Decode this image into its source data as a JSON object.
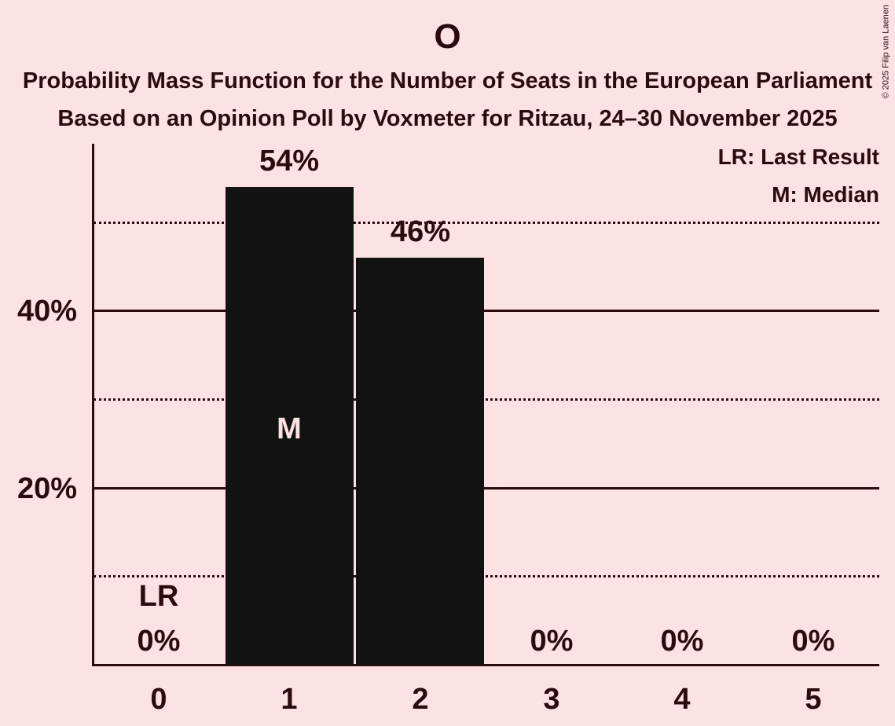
{
  "page": {
    "copyright": "© 2025 Filip van Laenen"
  },
  "chart_data": {
    "type": "bar",
    "title": "O",
    "subtitle": "Probability Mass Function for the Number of Seats in the European Parliament",
    "poll_line": "Based on an Opinion Poll by Voxmeter for Ritzau, 24–30 November 2025",
    "xlabel": "",
    "ylabel": "",
    "categories": [
      "0",
      "1",
      "2",
      "3",
      "4",
      "5"
    ],
    "values": [
      0,
      54,
      46,
      0,
      0,
      0
    ],
    "bar_value_labels": [
      "0%",
      "54%",
      "46%",
      "0%",
      "0%",
      "0%"
    ],
    "y_axis": {
      "tick_labels": [
        "20%",
        "40%"
      ],
      "tick_values": [
        20,
        40
      ],
      "solid_gridlines": [
        20,
        40
      ],
      "dotted_gridlines": [
        10,
        30,
        50
      ],
      "ylim": [
        0,
        59
      ]
    },
    "legend": {
      "position": "top-right",
      "lr_entry": "LR: Last Result",
      "m_entry": "M: Median"
    },
    "annotations": {
      "lr_label": "LR",
      "lr_category": "0",
      "median_label": "M",
      "median_category": "1"
    },
    "grid": "horizontal-only",
    "colors": {
      "background": "#fce2e4",
      "bar": "#121212",
      "text": "#2c0a12"
    }
  }
}
